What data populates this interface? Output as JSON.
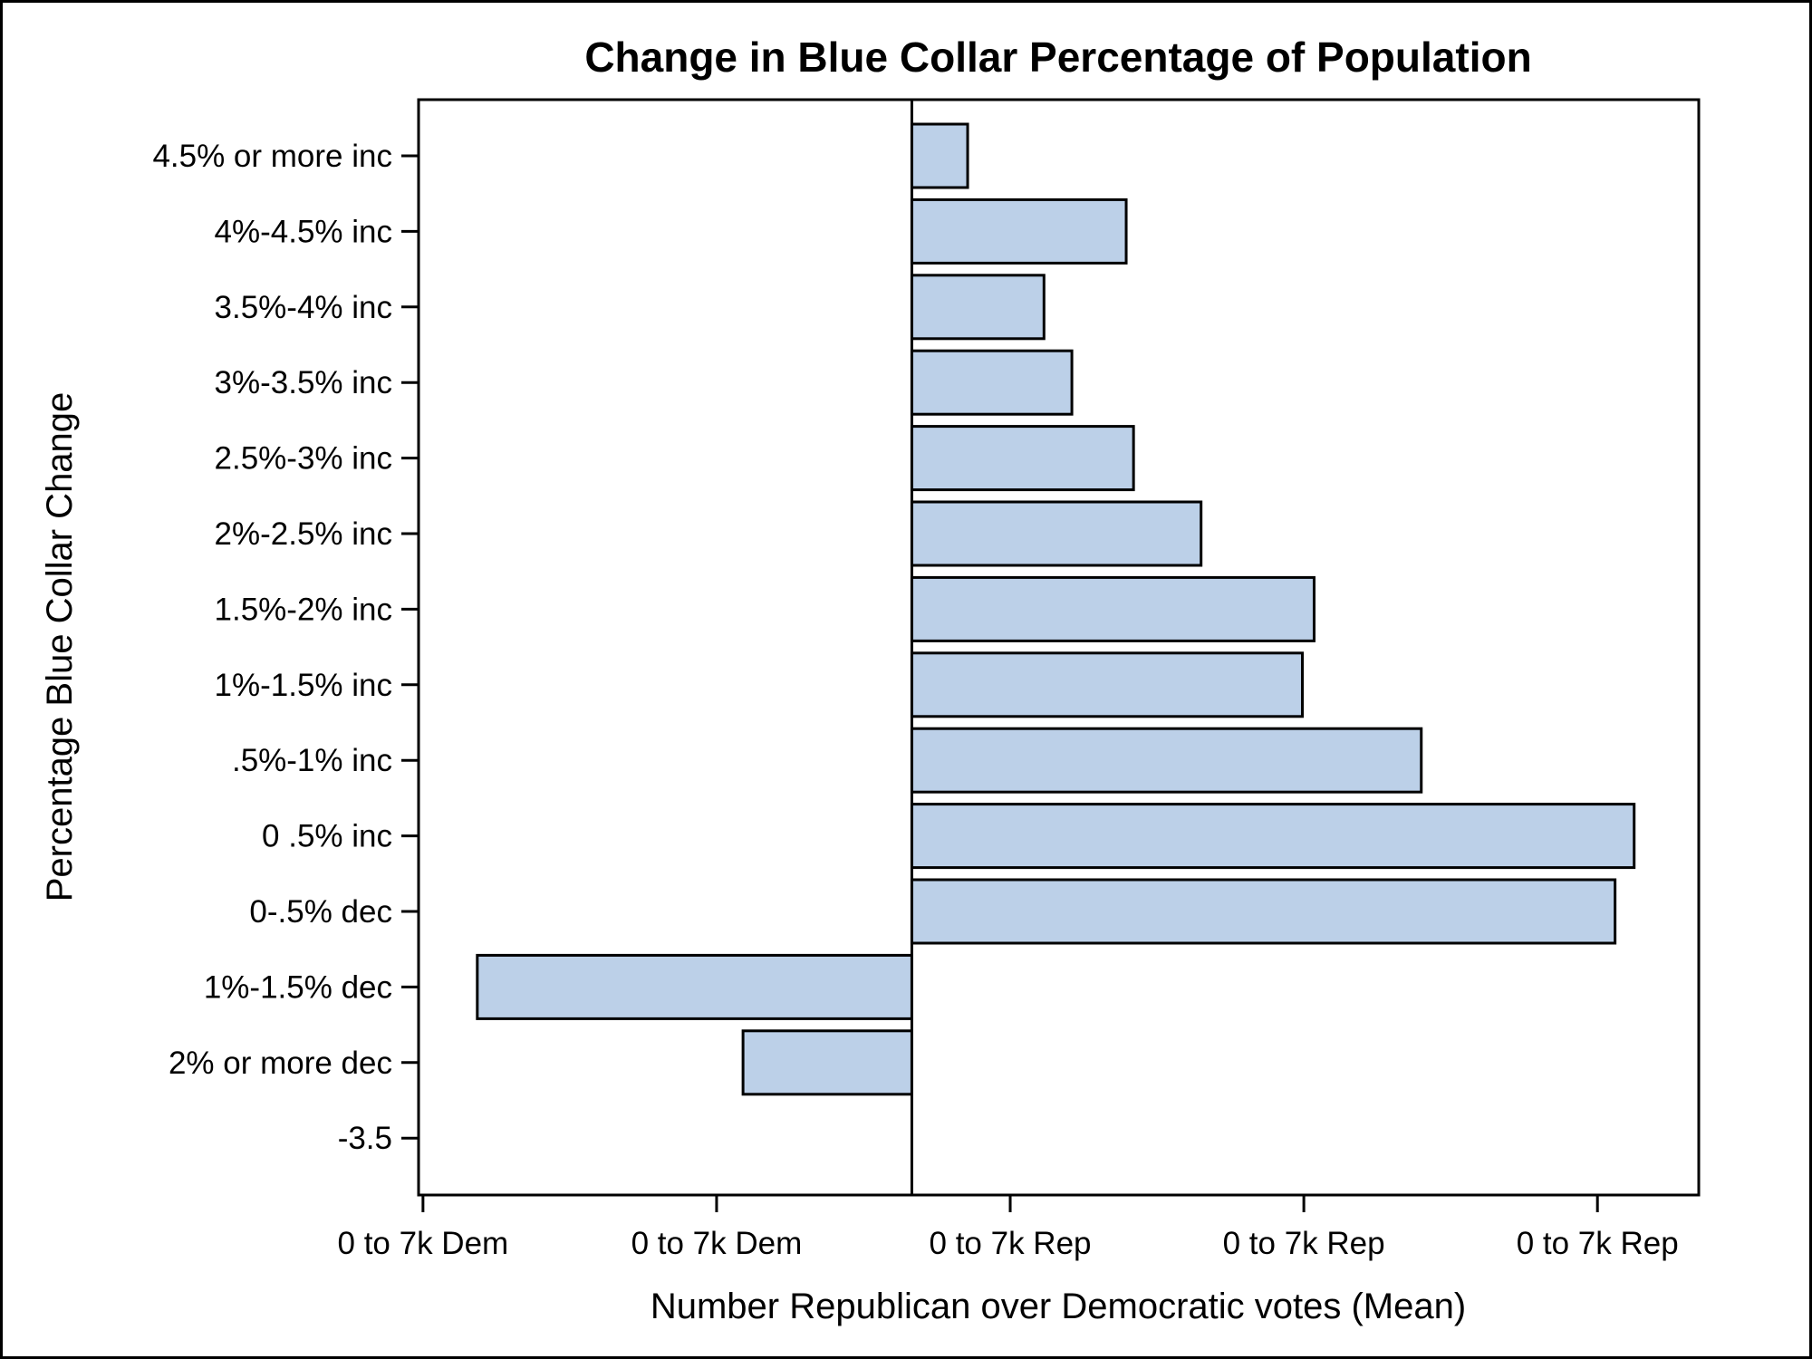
{
  "chart_data": {
    "type": "bar",
    "orientation": "horizontal",
    "title": "Change in Blue Collar Percentage of Population",
    "xlabel": "Number Republican over Democratic votes (Mean)",
    "ylabel": "Percentage Blue Collar Change",
    "categories": [
      "4.5% or more inc",
      "4%-4.5% inc",
      "3.5%-4% inc",
      "3%-3.5% inc",
      "2.5%-3% inc",
      "2%-2.5% inc",
      "1.5%-2% inc",
      "1%-1.5% inc",
      ".5%-1% inc",
      "0 .5% inc",
      "0-.5% dec",
      "1%-1.5% dec",
      "2% or more dec",
      "-3.5"
    ],
    "values": [
      190,
      730,
      450,
      545,
      755,
      985,
      1370,
      1330,
      1735,
      2460,
      2395,
      -1480,
      -575,
      null
    ],
    "x_ticks": [
      {
        "value": -1665,
        "label": "0 to 7k Dem"
      },
      {
        "value": -665,
        "label": "0 to 7k Dem"
      },
      {
        "value": 335,
        "label": "0 to 7k Rep"
      },
      {
        "value": 1335,
        "label": "0 to 7k Rep"
      },
      {
        "value": 2335,
        "label": "0 to 7k Rep"
      }
    ],
    "xlim": [
      -1680,
      2680
    ],
    "reference_line": 0,
    "grid": false,
    "legend": "none",
    "bar_color": "#bcd0e8",
    "edge_color": "#000000"
  }
}
